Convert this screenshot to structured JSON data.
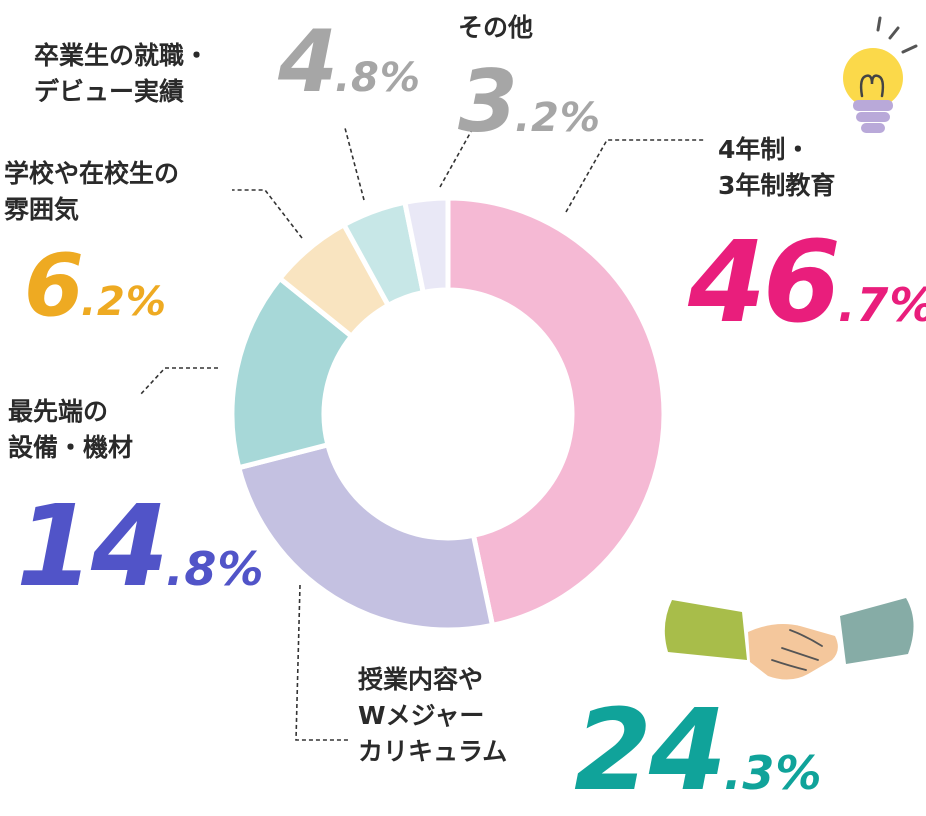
{
  "chart_data": {
    "type": "pie",
    "variant": "donut",
    "title": "",
    "slices": [
      {
        "label_lines": [
          "4年制・",
          "3年制教育"
        ],
        "value_int": "46",
        "value_dec": ".7%",
        "value": 46.7,
        "color": "#f5b9d4",
        "text_color": "#e91e7c"
      },
      {
        "label_lines": [
          "授業内容や",
          "Wメジャー",
          "カリキュラム"
        ],
        "value_int": "24",
        "value_dec": ".3%",
        "value": 24.3,
        "color": "#c4c1e1",
        "text_color": "#10a39a"
      },
      {
        "label_lines": [
          "最先端の",
          "設備・機材"
        ],
        "value_int": "14",
        "value_dec": ".8%",
        "value": 14.8,
        "color": "#a7d8d8",
        "text_color": "#5154c8"
      },
      {
        "label_lines": [
          "学校や在校生の",
          "雰囲気"
        ],
        "value_int": "6",
        "value_dec": ".2%",
        "value": 6.2,
        "color": "#f9e4c0",
        "text_color": "#eeaa22"
      },
      {
        "label_lines": [
          "卒業生の就職・",
          "デビュー実績"
        ],
        "value_int": "4",
        "value_dec": ".8%",
        "value": 4.8,
        "color": "#c7e7e7",
        "text_color": "#a6a6a6"
      },
      {
        "label_lines": [
          "その他"
        ],
        "value_int": "3",
        "value_dec": ".2%",
        "value": 3.2,
        "color": "#e9e8f6",
        "text_color": "#a6a6a6"
      }
    ]
  },
  "icons": [
    "lightbulb-icon",
    "handshake-icon"
  ]
}
